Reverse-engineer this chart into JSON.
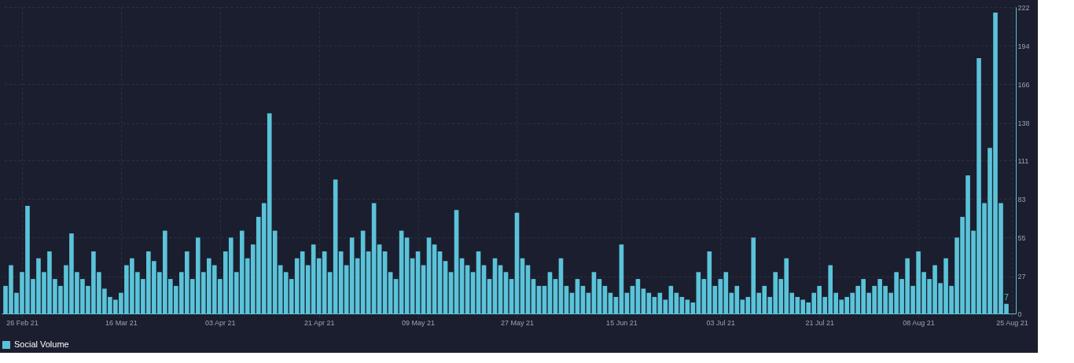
{
  "chart_data": {
    "type": "bar",
    "x": [
      "2021-02-23",
      "2021-02-24",
      "2021-02-25",
      "2021-02-26",
      "2021-02-27",
      "2021-02-28",
      "2021-03-01",
      "2021-03-02",
      "2021-03-03",
      "2021-03-04",
      "2021-03-05",
      "2021-03-06",
      "2021-03-07",
      "2021-03-08",
      "2021-03-09",
      "2021-03-10",
      "2021-03-11",
      "2021-03-12",
      "2021-03-13",
      "2021-03-14",
      "2021-03-15",
      "2021-03-16",
      "2021-03-17",
      "2021-03-18",
      "2021-03-19",
      "2021-03-20",
      "2021-03-21",
      "2021-03-22",
      "2021-03-23",
      "2021-03-24",
      "2021-03-25",
      "2021-03-26",
      "2021-03-27",
      "2021-03-28",
      "2021-03-29",
      "2021-03-30",
      "2021-03-31",
      "2021-04-01",
      "2021-04-02",
      "2021-04-03",
      "2021-04-04",
      "2021-04-05",
      "2021-04-06",
      "2021-04-07",
      "2021-04-08",
      "2021-04-09",
      "2021-04-10",
      "2021-04-11",
      "2021-04-12",
      "2021-04-13",
      "2021-04-14",
      "2021-04-15",
      "2021-04-16",
      "2021-04-17",
      "2021-04-18",
      "2021-04-19",
      "2021-04-20",
      "2021-04-21",
      "2021-04-22",
      "2021-04-23",
      "2021-04-24",
      "2021-04-25",
      "2021-04-26",
      "2021-04-27",
      "2021-04-28",
      "2021-04-29",
      "2021-04-30",
      "2021-05-01",
      "2021-05-02",
      "2021-05-03",
      "2021-05-04",
      "2021-05-05",
      "2021-05-06",
      "2021-05-07",
      "2021-05-08",
      "2021-05-09",
      "2021-05-10",
      "2021-05-11",
      "2021-05-12",
      "2021-05-13",
      "2021-05-14",
      "2021-05-15",
      "2021-05-16",
      "2021-05-17",
      "2021-05-18",
      "2021-05-19",
      "2021-05-20",
      "2021-05-21",
      "2021-05-22",
      "2021-05-23",
      "2021-05-24",
      "2021-05-25",
      "2021-05-26",
      "2021-05-27",
      "2021-05-28",
      "2021-05-29",
      "2021-05-30",
      "2021-05-31",
      "2021-06-01",
      "2021-06-02",
      "2021-06-03",
      "2021-06-04",
      "2021-06-05",
      "2021-06-06",
      "2021-06-07",
      "2021-06-08",
      "2021-06-09",
      "2021-06-10",
      "2021-06-11",
      "2021-06-12",
      "2021-06-13",
      "2021-06-14",
      "2021-06-15",
      "2021-06-16",
      "2021-06-17",
      "2021-06-18",
      "2021-06-19",
      "2021-06-20",
      "2021-06-21",
      "2021-06-22",
      "2021-06-23",
      "2021-06-24",
      "2021-06-25",
      "2021-06-26",
      "2021-06-27",
      "2021-06-28",
      "2021-06-29",
      "2021-06-30",
      "2021-07-01",
      "2021-07-02",
      "2021-07-03",
      "2021-07-04",
      "2021-07-05",
      "2021-07-06",
      "2021-07-07",
      "2021-07-08",
      "2021-07-09",
      "2021-07-10",
      "2021-07-11",
      "2021-07-12",
      "2021-07-13",
      "2021-07-14",
      "2021-07-15",
      "2021-07-16",
      "2021-07-17",
      "2021-07-18",
      "2021-07-19",
      "2021-07-20",
      "2021-07-21",
      "2021-07-22",
      "2021-07-23",
      "2021-07-24",
      "2021-07-25",
      "2021-07-26",
      "2021-07-27",
      "2021-07-28",
      "2021-07-29",
      "2021-07-30",
      "2021-07-31",
      "2021-08-01",
      "2021-08-02",
      "2021-08-03",
      "2021-08-04",
      "2021-08-05",
      "2021-08-06",
      "2021-08-07",
      "2021-08-08",
      "2021-08-09",
      "2021-08-10",
      "2021-08-11",
      "2021-08-12",
      "2021-08-13",
      "2021-08-14",
      "2021-08-15",
      "2021-08-16",
      "2021-08-17",
      "2021-08-18",
      "2021-08-19",
      "2021-08-20",
      "2021-08-21",
      "2021-08-22",
      "2021-08-23",
      "2021-08-24"
    ],
    "series": [
      {
        "name": "Social Volume",
        "color": "#5bc3d9",
        "values": [
          20,
          35,
          15,
          30,
          78,
          25,
          40,
          30,
          45,
          25,
          20,
          35,
          58,
          30,
          25,
          20,
          45,
          30,
          18,
          12,
          10,
          15,
          35,
          40,
          30,
          25,
          45,
          38,
          30,
          60,
          25,
          20,
          30,
          45,
          25,
          55,
          30,
          40,
          35,
          25,
          45,
          55,
          30,
          60,
          40,
          50,
          70,
          80,
          145,
          60,
          35,
          30,
          25,
          40,
          45,
          35,
          50,
          40,
          45,
          30,
          97,
          45,
          35,
          55,
          40,
          60,
          45,
          80,
          50,
          45,
          30,
          25,
          60,
          55,
          40,
          45,
          35,
          55,
          50,
          45,
          38,
          30,
          75,
          40,
          35,
          30,
          45,
          35,
          25,
          40,
          35,
          30,
          25,
          73,
          40,
          35,
          25,
          20,
          20,
          30,
          25,
          40,
          20,
          15,
          25,
          20,
          15,
          30,
          25,
          20,
          15,
          12,
          50,
          15,
          20,
          25,
          18,
          15,
          12,
          15,
          10,
          20,
          15,
          12,
          10,
          8,
          30,
          25,
          45,
          20,
          25,
          30,
          15,
          20,
          10,
          12,
          55,
          15,
          20,
          12,
          30,
          25,
          40,
          15,
          12,
          10,
          8,
          15,
          20,
          12,
          35,
          15,
          10,
          12,
          15,
          20,
          25,
          15,
          20,
          25,
          20,
          15,
          30,
          25,
          40,
          20,
          45,
          30,
          25,
          35,
          22,
          40,
          20,
          55,
          70,
          100,
          60,
          185,
          80,
          120,
          218,
          80,
          7
        ]
      }
    ],
    "xlim": [
      "2021-02-23",
      "2021-08-25"
    ],
    "xticks": [
      {
        "value": "2021-02-26",
        "label": "26 Feb 21"
      },
      {
        "value": "2021-03-16",
        "label": "16 Mar 21"
      },
      {
        "value": "2021-04-03",
        "label": "03 Apr 21"
      },
      {
        "value": "2021-04-21",
        "label": "21 Apr 21"
      },
      {
        "value": "2021-05-09",
        "label": "09 May 21"
      },
      {
        "value": "2021-05-27",
        "label": "27 May 21"
      },
      {
        "value": "2021-06-15",
        "label": "15 Jun 21"
      },
      {
        "value": "2021-07-03",
        "label": "03 Jul 21"
      },
      {
        "value": "2021-07-21",
        "label": "21 Jul 21"
      },
      {
        "value": "2021-08-08",
        "label": "08 Aug 21"
      },
      {
        "value": "2021-08-25",
        "label": "25 Aug 21"
      }
    ],
    "ylim": [
      0,
      222
    ],
    "yticks": [
      0,
      27,
      55,
      83,
      111,
      138,
      166,
      194,
      222
    ],
    "annotations": [
      {
        "text": "7",
        "x": "2021-08-24",
        "y": 7
      }
    ],
    "grid": true,
    "legend": "bottom"
  }
}
